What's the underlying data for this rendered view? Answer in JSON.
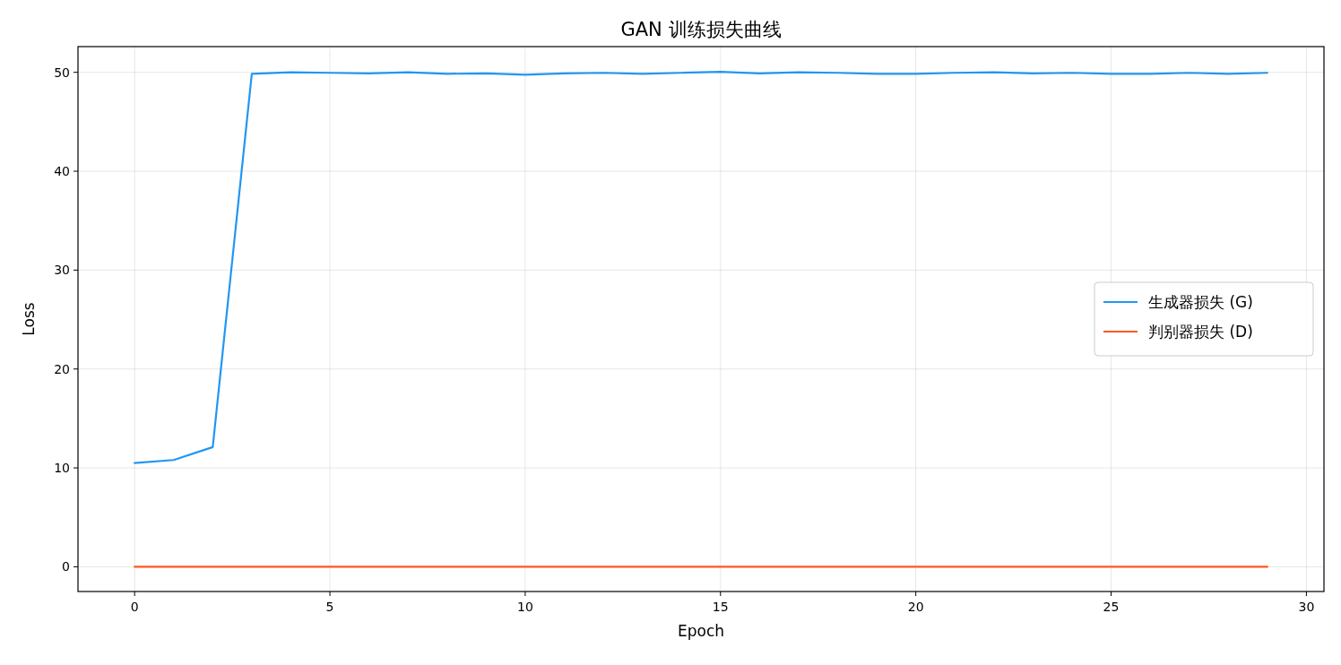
{
  "chart_data": {
    "type": "line",
    "title": "GAN 训练损失曲线",
    "xlabel": "Epoch",
    "ylabel": "Loss",
    "x": [
      0,
      1,
      2,
      3,
      4,
      5,
      6,
      7,
      8,
      9,
      10,
      11,
      12,
      13,
      14,
      15,
      16,
      17,
      18,
      19,
      20,
      21,
      22,
      23,
      24,
      25,
      26,
      27,
      28,
      29
    ],
    "series": [
      {
        "name": "生成器损失 (G)",
        "color": "#2196f3",
        "values": [
          10.5,
          10.8,
          12.1,
          49.85,
          50.0,
          49.95,
          49.9,
          50.0,
          49.85,
          49.9,
          49.75,
          49.9,
          49.95,
          49.85,
          49.95,
          50.05,
          49.9,
          50.0,
          49.95,
          49.85,
          49.85,
          49.95,
          50.0,
          49.9,
          49.95,
          49.85,
          49.85,
          49.95,
          49.85,
          49.95
        ]
      },
      {
        "name": "判别器损失 (D)",
        "color": "#ff5722",
        "values": [
          0,
          0,
          0,
          0,
          0,
          0,
          0,
          0,
          0,
          0,
          0,
          0,
          0,
          0,
          0,
          0,
          0,
          0,
          0,
          0,
          0,
          0,
          0,
          0,
          0,
          0,
          0,
          0,
          0,
          0
        ]
      }
    ],
    "xlim": [
      -1.45,
      30.45
    ],
    "xticks": [
      0,
      5,
      10,
      15,
      20,
      25,
      30
    ],
    "ylim": [
      -2.5,
      52.6
    ],
    "yticks": [
      0,
      10,
      20,
      30,
      40,
      50
    ],
    "grid": true,
    "legend": "right",
    "marker": "none",
    "line_style": "solid"
  }
}
